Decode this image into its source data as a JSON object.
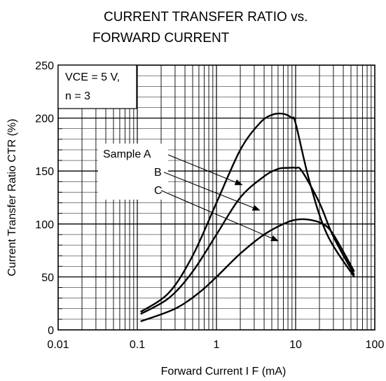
{
  "chart_data": {
    "type": "line",
    "title_line1": "CURRENT TRANSFER RATIO vs.",
    "title_line2": "FORWARD CURRENT",
    "xlabel": "Forward Current  I F (mA)",
    "ylabel": "Current Transfer Ratio  CTR (%)",
    "x_scale": "log",
    "xlim": [
      0.01,
      100
    ],
    "ylim": [
      0,
      250
    ],
    "x_ticks": [
      "0.01",
      "0.1",
      "1",
      "10",
      "100"
    ],
    "y_ticks": [
      "0",
      "50",
      "100",
      "150",
      "200",
      "250"
    ],
    "grid": true,
    "conditions": {
      "line1": "VCE = 5 V,",
      "line2": "n = 3"
    },
    "series": [
      {
        "name": "Sample A",
        "x": [
          0.11,
          0.25,
          0.5,
          1,
          2,
          3.5,
          5,
          7,
          9,
          10,
          15,
          25,
          55
        ],
        "y": [
          17,
          35,
          70,
          120,
          170,
          195,
          203,
          204,
          200,
          195,
          140,
          90,
          50
        ]
      },
      {
        "name": "B",
        "x": [
          0.11,
          0.25,
          0.5,
          1,
          2,
          4,
          6,
          8,
          10,
          12,
          20,
          30,
          55
        ],
        "y": [
          15,
          30,
          55,
          90,
          125,
          145,
          152,
          153,
          153,
          150,
          120,
          88,
          52
        ]
      },
      {
        "name": "C",
        "x": [
          0.11,
          0.3,
          0.6,
          1,
          2,
          4,
          7,
          10,
          15,
          22,
          30,
          55
        ],
        "y": [
          8,
          20,
          35,
          50,
          72,
          90,
          100,
          104,
          104,
          100,
          90,
          55
        ]
      }
    ]
  }
}
